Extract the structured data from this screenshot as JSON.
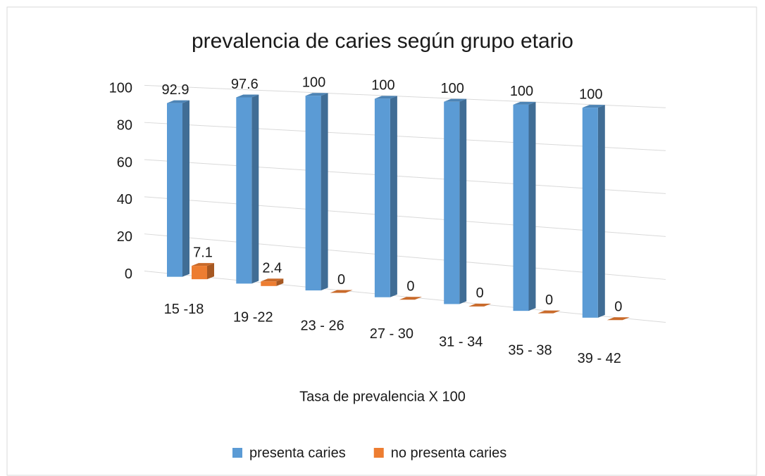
{
  "chart_data": {
    "type": "bar3d",
    "title": "prevalencia de caries según grupo etario",
    "xlabel": "Tasa de prevalencia X 100",
    "categories": [
      "15 -18",
      "19 -22",
      "23 - 26",
      "27 - 30",
      "31 - 34",
      "35 - 38",
      "39 - 42"
    ],
    "series": [
      {
        "name": "presenta caries",
        "color": "#5b9bd5",
        "values": [
          92.9,
          97.6,
          100,
          100,
          100,
          100,
          100
        ]
      },
      {
        "name": "no presenta caries",
        "color": "#ed7d31",
        "values": [
          7.1,
          2.4,
          0,
          0,
          0,
          0,
          0
        ]
      }
    ],
    "ylim": [
      0,
      100
    ],
    "yticks": [
      0,
      20,
      40,
      60,
      80,
      100
    ],
    "grid": true,
    "legend": "bottom"
  }
}
